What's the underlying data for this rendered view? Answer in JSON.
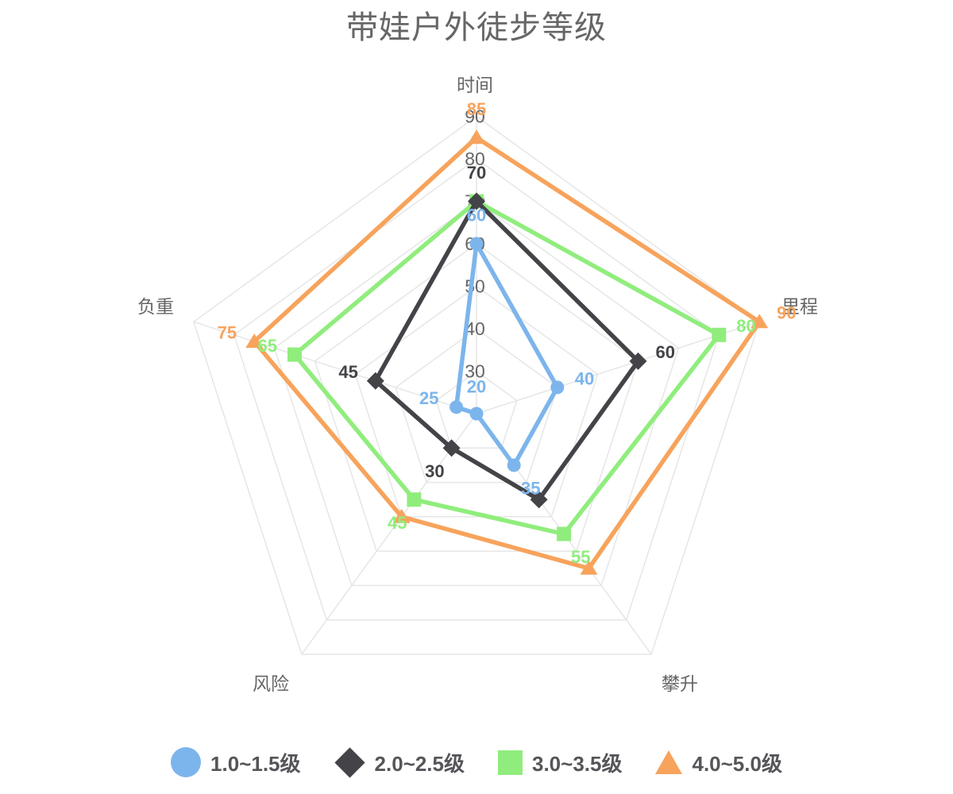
{
  "title": "带娃户外徒步等级",
  "chart_data": {
    "type": "radar",
    "title": "带娃户外徒步等级",
    "indicators": [
      "时间",
      "里程",
      "攀升",
      "风险",
      "负重"
    ],
    "scale": {
      "min": 20,
      "max": 90,
      "interval": 10,
      "axis_tick_labels": [
        "30",
        "40",
        "50",
        "60",
        "70",
        "80",
        "90"
      ]
    },
    "grid": {
      "shape": "polygon",
      "line_color": "#e6e6e6"
    },
    "legend_position": "bottom",
    "series": [
      {
        "name": "1.0~1.5级",
        "color": "#7cb5ec",
        "symbol": "circle",
        "values": [
          60,
          40,
          35,
          20,
          25
        ],
        "label_visible": [
          true,
          true,
          true,
          true,
          true
        ]
      },
      {
        "name": "2.0~2.5级",
        "color": "#434348",
        "symbol": "diamond",
        "values": [
          70,
          60,
          45,
          30,
          45
        ],
        "label_visible": [
          true,
          true,
          false,
          true,
          true
        ]
      },
      {
        "name": "3.0~3.5级",
        "color": "#90ed7d",
        "symbol": "square",
        "values": [
          70,
          80,
          55,
          45,
          65
        ],
        "label_visible": [
          false,
          true,
          true,
          true,
          true
        ]
      },
      {
        "name": "4.0~5.0级",
        "color": "#f7a35c",
        "symbol": "triangle",
        "values": [
          85,
          90,
          65,
          50,
          75
        ],
        "label_visible": [
          true,
          true,
          false,
          false,
          true
        ]
      }
    ]
  },
  "colors": {
    "title_text": "#666666",
    "axis_name_text": "#666666",
    "axis_tick_text": "#666666",
    "legend_text": "#55555a",
    "grid_line": "#e6e6e6"
  }
}
